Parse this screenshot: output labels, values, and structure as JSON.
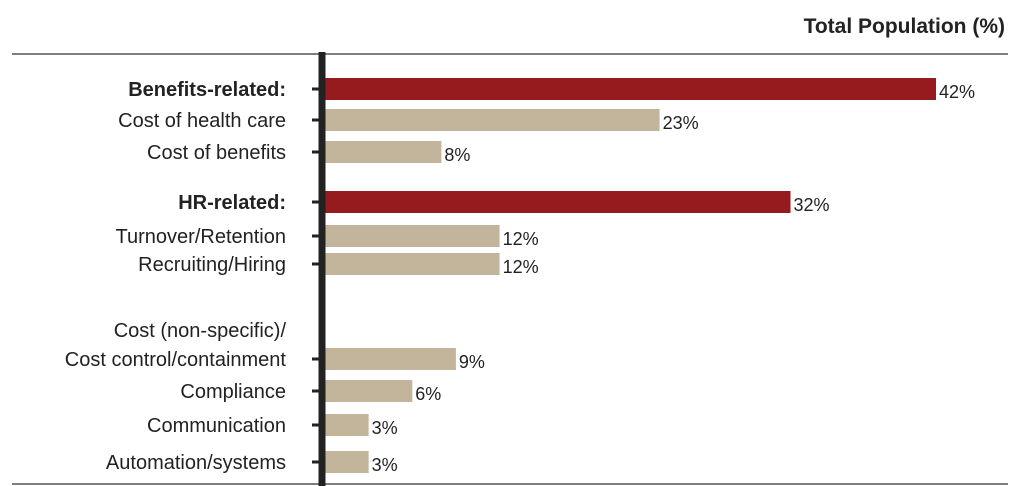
{
  "chart_data": {
    "type": "bar",
    "orientation": "horizontal",
    "title": "Total Population (%)",
    "categories": [
      "Benefits-related:",
      "Cost of health care",
      "Cost of benefits",
      "HR-related:",
      "Turnover/Retention",
      "Recruiting/Hiring",
      "Cost (non-specific)/ Cost control/containment",
      "Compliance",
      "Communication",
      "Automation/systems"
    ],
    "values": [
      42,
      23,
      8,
      32,
      12,
      12,
      9,
      6,
      3,
      3
    ],
    "value_labels": [
      "42%",
      "23%",
      "8%",
      "32%",
      "12%",
      "12%",
      "9%",
      "6%",
      "3%",
      "3%"
    ],
    "highlighted": [
      true,
      false,
      false,
      true,
      false,
      false,
      false,
      false,
      false,
      false
    ],
    "xlim": [
      0,
      42
    ],
    "grid": false,
    "colors": {
      "highlight": "#961b1e",
      "default": "#c3b59b",
      "axis": "#222222"
    }
  }
}
